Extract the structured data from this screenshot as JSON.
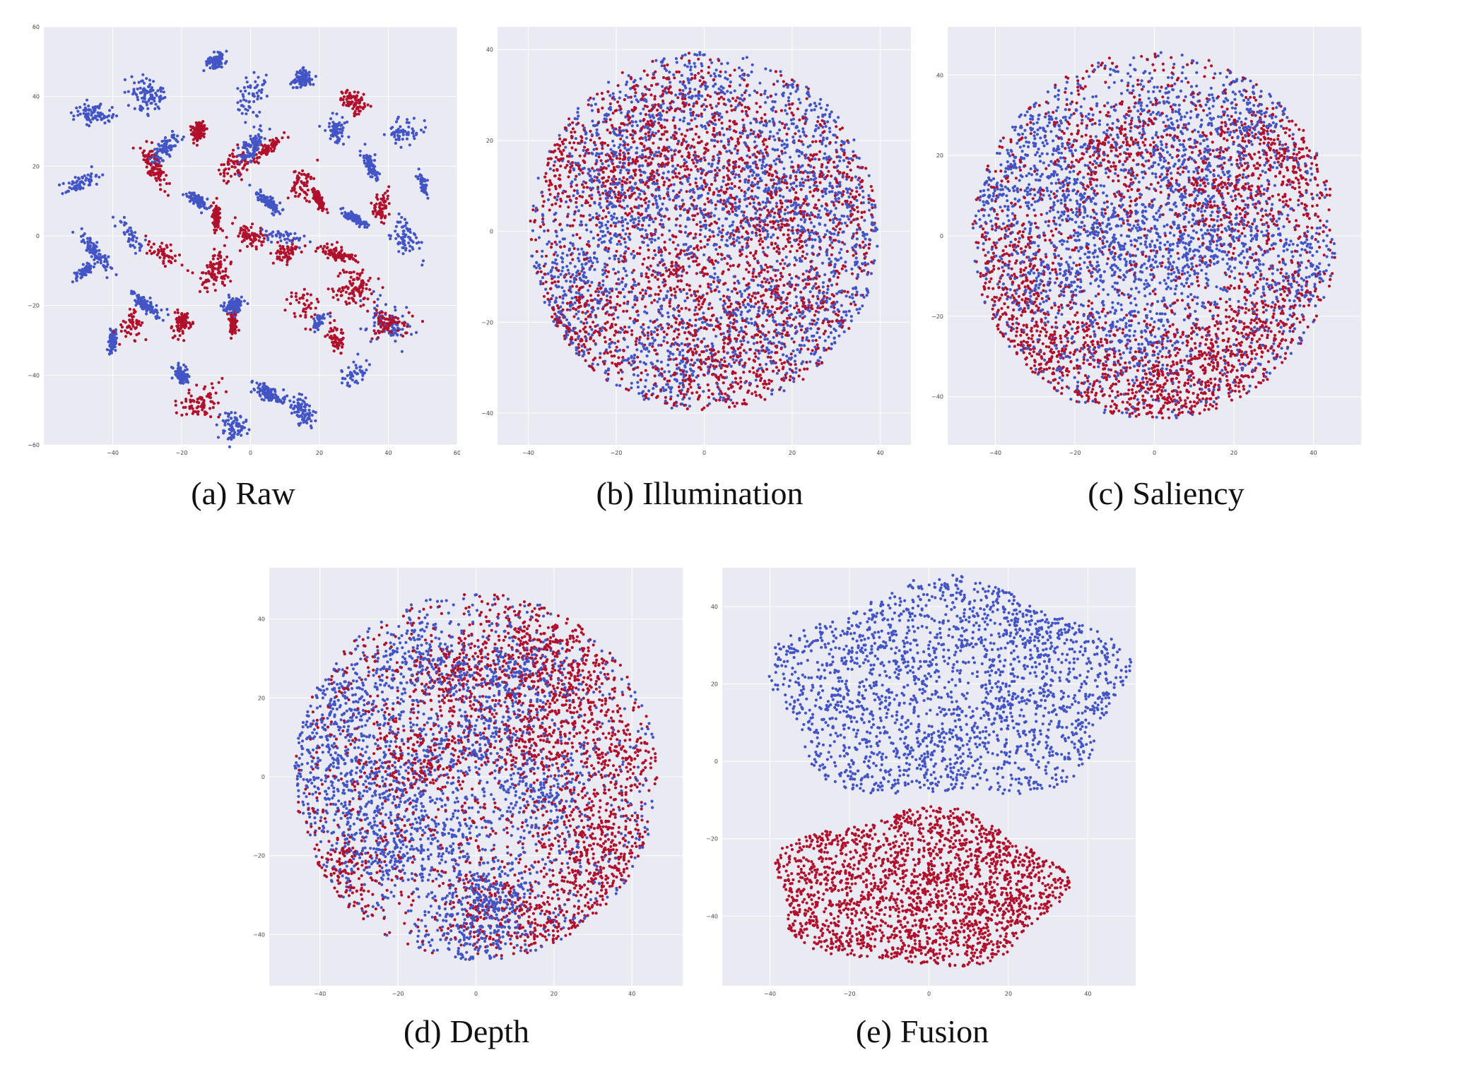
{
  "colors": {
    "class_a": "#4355c5",
    "class_b": "#b0102c",
    "plot_bg": "#eaeaf2",
    "grid": "#ffffff"
  },
  "chart_data": [
    {
      "type": "scatter",
      "caption_label": "(a)",
      "caption_name": "Raw",
      "xlim": [
        -60,
        60
      ],
      "ylim": [
        -60,
        60
      ],
      "xticks": [
        -40,
        -20,
        0,
        20,
        40,
        60
      ],
      "yticks": [
        60,
        40,
        20,
        0,
        -20,
        -40,
        -60
      ],
      "grid": true,
      "structure": "many small compact clusters, each mostly a single class",
      "series": [
        {
          "color": "#4355c5",
          "clusters": [
            [
              -45,
              35
            ],
            [
              -50,
              15
            ],
            [
              -48,
              -10
            ],
            [
              -40,
              -30
            ],
            [
              -30,
              40
            ],
            [
              -25,
              25
            ],
            [
              -35,
              0
            ],
            [
              -20,
              -40
            ],
            [
              -10,
              50
            ],
            [
              0,
              40
            ],
            [
              5,
              -45
            ],
            [
              15,
              45
            ],
            [
              25,
              30
            ],
            [
              35,
              20
            ],
            [
              45,
              0
            ],
            [
              40,
              -25
            ],
            [
              30,
              -40
            ],
            [
              15,
              -50
            ],
            [
              -5,
              -55
            ],
            [
              50,
              15
            ],
            [
              -15,
              10
            ],
            [
              5,
              10
            ],
            [
              -5,
              -20
            ],
            [
              20,
              -25
            ],
            [
              10,
              0
            ],
            [
              -30,
              -20
            ],
            [
              45,
              30
            ],
            [
              -45,
              -5
            ],
            [
              30,
              5
            ],
            [
              0,
              25
            ]
          ]
        },
        {
          "color": "#b0102c",
          "clusters": [
            [
              -28,
              20
            ],
            [
              -25,
              -5
            ],
            [
              -15,
              30
            ],
            [
              -5,
              20
            ],
            [
              5,
              25
            ],
            [
              15,
              15
            ],
            [
              -10,
              5
            ],
            [
              0,
              0
            ],
            [
              10,
              -5
            ],
            [
              -20,
              -25
            ],
            [
              -5,
              -25
            ],
            [
              15,
              -20
            ],
            [
              25,
              -5
            ],
            [
              30,
              -15
            ],
            [
              25,
              -30
            ],
            [
              -15,
              -48
            ],
            [
              30,
              38
            ],
            [
              38,
              8
            ],
            [
              40,
              -25
            ],
            [
              -35,
              -25
            ],
            [
              20,
              10
            ],
            [
              -10,
              -10
            ]
          ]
        }
      ]
    },
    {
      "type": "scatter",
      "caption_label": "(b)",
      "caption_name": "Illumination",
      "xlim": [
        -47,
        47
      ],
      "ylim": [
        -47,
        45
      ],
      "xticks": [
        -40,
        -20,
        0,
        20,
        40
      ],
      "yticks": [
        40,
        20,
        0,
        -20,
        -40
      ],
      "grid": true,
      "structure": "dense roughly circular cloud, classes heavily intermixed",
      "series": [
        {
          "color": "#4355c5",
          "clusters": [
            [
              -20,
              20
            ],
            [
              0,
              30
            ],
            [
              20,
              10
            ],
            [
              35,
              0
            ],
            [
              -30,
              -10
            ],
            [
              10,
              -20
            ],
            [
              -10,
              -30
            ],
            [
              30,
              -20
            ],
            [
              -35,
              -25
            ],
            [
              5,
              5
            ],
            [
              -15,
              5
            ],
            [
              25,
              25
            ]
          ]
        },
        {
          "color": "#b0102c",
          "clusters": [
            [
              -15,
              10
            ],
            [
              5,
              15
            ],
            [
              15,
              0
            ],
            [
              -5,
              -10
            ],
            [
              -25,
              -20
            ],
            [
              20,
              -15
            ],
            [
              -10,
              25
            ],
            [
              10,
              -35
            ],
            [
              -40,
              -20
            ],
            [
              30,
              10
            ],
            [
              0,
              -25
            ],
            [
              -30,
              15
            ]
          ]
        }
      ]
    },
    {
      "type": "scatter",
      "caption_label": "(c)",
      "caption_name": "Saliency",
      "xlim": [
        -52,
        52
      ],
      "ylim": [
        -52,
        52
      ],
      "xticks": [
        -40,
        -20,
        0,
        20,
        40
      ],
      "yticks": [
        40,
        20,
        0,
        -20,
        -40
      ],
      "grid": true,
      "structure": "dense circular cloud, partial grouping of classes",
      "series": [
        {
          "color": "#4355c5",
          "clusters": [
            [
              -30,
              25
            ],
            [
              -20,
              10
            ],
            [
              0,
              30
            ],
            [
              10,
              15
            ],
            [
              -10,
              0
            ],
            [
              5,
              -5
            ],
            [
              -25,
              -10
            ],
            [
              20,
              0
            ],
            [
              35,
              -10
            ],
            [
              -5,
              -25
            ],
            [
              25,
              30
            ],
            [
              -40,
              10
            ]
          ]
        },
        {
          "color": "#b0102c",
          "clusters": [
            [
              25,
              25
            ],
            [
              35,
              15
            ],
            [
              -35,
              -5
            ],
            [
              -25,
              -25
            ],
            [
              10,
              -35
            ],
            [
              0,
              -40
            ],
            [
              20,
              -30
            ],
            [
              -15,
              -35
            ],
            [
              15,
              10
            ],
            [
              -40,
              -20
            ],
            [
              30,
              -20
            ],
            [
              -10,
              20
            ]
          ]
        }
      ]
    },
    {
      "type": "scatter",
      "caption_label": "(d)",
      "caption_name": "Depth",
      "xlim": [
        -53,
        53
      ],
      "ylim": [
        -53,
        53
      ],
      "xticks": [
        -40,
        -20,
        0,
        20,
        40
      ],
      "yticks": [
        40,
        20,
        0,
        -20,
        -40
      ],
      "grid": true,
      "structure": "dense circular cloud, classes intermixed with red streaks on the right",
      "series": [
        {
          "color": "#4355c5",
          "clusters": [
            [
              -30,
              20
            ],
            [
              -20,
              0
            ],
            [
              0,
              10
            ],
            [
              -10,
              -15
            ],
            [
              -25,
              -20
            ],
            [
              10,
              25
            ],
            [
              -35,
              -5
            ],
            [
              5,
              -30
            ],
            [
              -15,
              30
            ],
            [
              15,
              -5
            ],
            [
              -40,
              10
            ],
            [
              0,
              -40
            ]
          ]
        },
        {
          "color": "#b0102c",
          "clusters": [
            [
              10,
              30
            ],
            [
              25,
              20
            ],
            [
              35,
              5
            ],
            [
              30,
              -15
            ],
            [
              20,
              -35
            ],
            [
              5,
              -35
            ],
            [
              -35,
              -25
            ],
            [
              15,
              10
            ],
            [
              -5,
              25
            ],
            [
              35,
              -25
            ],
            [
              -15,
              5
            ],
            [
              25,
              35
            ]
          ]
        }
      ]
    },
    {
      "type": "scatter",
      "caption_label": "(e)",
      "caption_name": "Fusion",
      "xlim": [
        -52,
        52
      ],
      "ylim": [
        -58,
        50
      ],
      "xticks": [
        -40,
        -20,
        0,
        20,
        40
      ],
      "yticks": [
        40,
        20,
        0,
        -20,
        -40
      ],
      "grid": true,
      "structure": "two well separated blobs: blue on top, red on bottom",
      "series": [
        {
          "color": "#4355c5",
          "region": {
            "cx": 5,
            "cy": 18,
            "rx": 44,
            "ry": 28
          }
        },
        {
          "color": "#b0102c",
          "region": {
            "cx": -3,
            "cy": -33,
            "rx": 36,
            "ry": 20
          }
        }
      ]
    }
  ]
}
